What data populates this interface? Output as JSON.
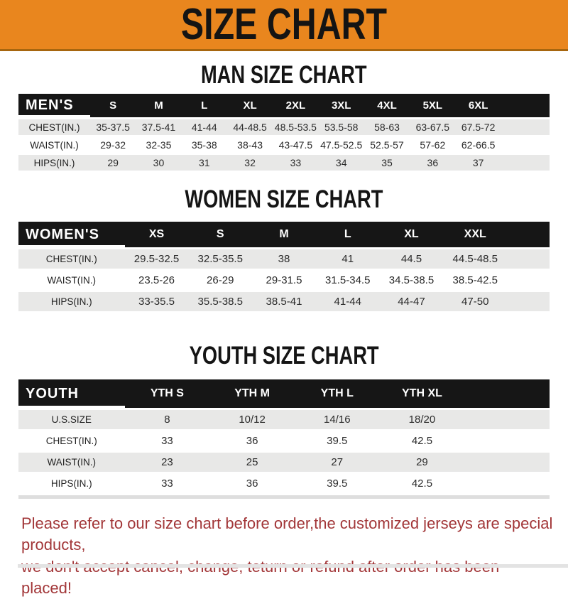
{
  "banner": {
    "title": "SIZE CHART"
  },
  "colors": {
    "banner_orange": "#E9861E",
    "header_black": "#161616",
    "row_gray": "#E8E8E7",
    "footer_red": "#A23638"
  },
  "sections": {
    "men": {
      "heading": "MAN SIZE CHART",
      "label": "MEN'S",
      "columns": [
        "S",
        "M",
        "L",
        "XL",
        "2XL",
        "3XL",
        "4XL",
        "5XL",
        "6XL"
      ],
      "rows": [
        {
          "label": "CHEST(IN.)",
          "values": [
            "35-37.5",
            "37.5-41",
            "41-44",
            "44-48.5",
            "48.5-53.5",
            "53.5-58",
            "58-63",
            "63-67.5",
            "67.5-72"
          ]
        },
        {
          "label": "WAIST(IN.)",
          "values": [
            "29-32",
            "32-35",
            "35-38",
            "38-43",
            "43-47.5",
            "47.5-52.5",
            "52.5-57",
            "57-62",
            "62-66.5"
          ]
        },
        {
          "label": "HIPS(IN.)",
          "values": [
            "29",
            "30",
            "31",
            "32",
            "33",
            "34",
            "35",
            "36",
            "37"
          ]
        }
      ]
    },
    "women": {
      "heading": "WOMEN SIZE CHART",
      "label": "WOMEN'S",
      "columns": [
        "XS",
        "S",
        "M",
        "L",
        "XL",
        "XXL"
      ],
      "rows": [
        {
          "label": "CHEST(IN.)",
          "values": [
            "29.5-32.5",
            "32.5-35.5",
            "38",
            "41",
            "44.5",
            "44.5-48.5"
          ]
        },
        {
          "label": "WAIST(IN.)",
          "values": [
            "23.5-26",
            "26-29",
            "29-31.5",
            "31.5-34.5",
            "34.5-38.5",
            "38.5-42.5"
          ]
        },
        {
          "label": "HIPS(IN.)",
          "values": [
            "33-35.5",
            "35.5-38.5",
            "38.5-41",
            "41-44",
            "44-47",
            "47-50"
          ]
        }
      ]
    },
    "youth": {
      "heading": "YOUTH SIZE CHART",
      "label": "YOUTH",
      "columns": [
        "YTH S",
        "YTH M",
        "YTH L",
        "YTH XL"
      ],
      "rows": [
        {
          "label": "U.S.SIZE",
          "values": [
            "8",
            "10/12",
            "14/16",
            "18/20"
          ]
        },
        {
          "label": "CHEST(IN.)",
          "values": [
            "33",
            "36",
            "39.5",
            "42.5"
          ]
        },
        {
          "label": "WAIST(IN.)",
          "values": [
            "23",
            "25",
            "27",
            "29"
          ]
        },
        {
          "label": "HIPS(IN.)",
          "values": [
            "33",
            "36",
            "39.5",
            "42.5"
          ]
        }
      ]
    }
  },
  "footer": {
    "line1": "Please refer to our size chart before order,the customized jerseys are special products,",
    "line2": "we don't accept cancel, change, teturn or refund after order has been placed!"
  }
}
